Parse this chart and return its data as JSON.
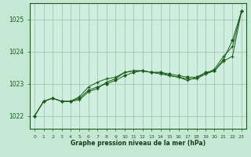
{
  "title": "Graphe pression niveau de la mer (hPa)",
  "background_color": "#c5e8d5",
  "plot_bg_color": "#d0eee0",
  "grid_color": "#9abfaa",
  "line_color": "#1a5c1a",
  "marker_color": "#1a5c1a",
  "x_labels": [
    "0",
    "1",
    "2",
    "3",
    "4",
    "5",
    "6",
    "7",
    "8",
    "9",
    "10",
    "11",
    "12",
    "13",
    "14",
    "15",
    "16",
    "17",
    "18",
    "19",
    "20",
    "21",
    "22",
    "23"
  ],
  "ylim": [
    1021.6,
    1025.5
  ],
  "yticks": [
    1022,
    1023,
    1024,
    1025
  ],
  "series": [
    {
      "y": [
        1022.0,
        1022.45,
        1022.55,
        1022.45,
        1022.45,
        1022.5,
        1022.75,
        1022.85,
        1023.05,
        1023.15,
        1023.35,
        1023.4,
        1023.4,
        1023.35,
        1023.35,
        1023.25,
        1023.2,
        1023.15,
        1023.15,
        1023.3,
        1023.45,
        1023.85,
        1024.15,
        1025.25
      ],
      "has_markers": true
    },
    {
      "y": [
        1022.0,
        1022.45,
        1022.55,
        1022.45,
        1022.45,
        1022.6,
        1022.9,
        1023.05,
        1023.15,
        1023.2,
        1023.35,
        1023.4,
        1023.4,
        1023.35,
        1023.3,
        1023.25,
        1023.2,
        1023.1,
        1023.2,
        1023.3,
        1023.4,
        1023.7,
        1023.85,
        1025.25
      ],
      "has_markers": true
    },
    {
      "y": [
        1022.0,
        1022.45,
        1022.55,
        1022.45,
        1022.45,
        1022.55,
        1022.8,
        1022.9,
        1023.0,
        1023.1,
        1023.25,
        1023.35,
        1023.4,
        1023.35,
        1023.35,
        1023.3,
        1023.25,
        1023.2,
        1023.2,
        1023.35,
        1023.4,
        1023.75,
        1024.35,
        1025.25
      ],
      "has_markers": false
    }
  ]
}
